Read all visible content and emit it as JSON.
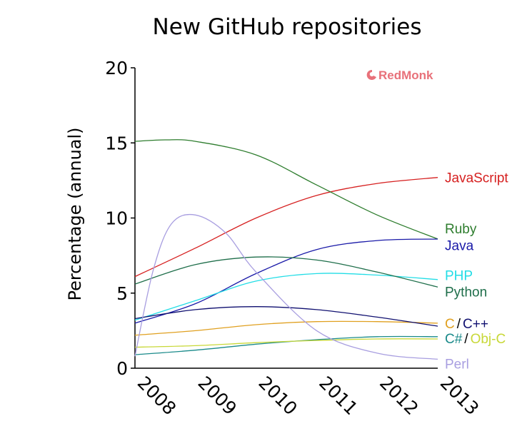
{
  "chart_data": {
    "type": "line",
    "title": "New GitHub repositories",
    "xlabel": "",
    "ylabel": "Percentage (annual)",
    "x": [
      "2008",
      "2009",
      "2010",
      "2011",
      "2012",
      "2013"
    ],
    "xlim": [
      2008,
      2013
    ],
    "ylim": [
      0,
      20
    ],
    "yticks": [
      "0",
      "5",
      "10",
      "15",
      "20"
    ],
    "grid": false,
    "legend": "inline-right",
    "logo": "RedMonk",
    "logo_color": "#e8717a",
    "series": [
      {
        "name": "JavaScript",
        "color": "#d62020",
        "points": [
          [
            2008,
            6.1
          ],
          [
            2009,
            8.0
          ],
          [
            2010,
            10.0
          ],
          [
            2011,
            11.5
          ],
          [
            2012,
            12.3
          ],
          [
            2013,
            12.7
          ]
        ]
      },
      {
        "name": "Ruby",
        "color": "#2e7d2e",
        "points": [
          [
            2008,
            15.1
          ],
          [
            2008.5,
            15.2
          ],
          [
            2009,
            15.1
          ],
          [
            2010,
            14.2
          ],
          [
            2011,
            12.2
          ],
          [
            2012,
            10.2
          ],
          [
            2013,
            8.6
          ]
        ]
      },
      {
        "name": "Java",
        "color": "#1a1aa8",
        "points": [
          [
            2008,
            3.0
          ],
          [
            2009,
            4.3
          ],
          [
            2010,
            6.3
          ],
          [
            2011,
            7.9
          ],
          [
            2012,
            8.5
          ],
          [
            2013,
            8.6
          ]
        ]
      },
      {
        "name": "PHP",
        "color": "#22dde6",
        "points": [
          [
            2008,
            3.2
          ],
          [
            2009,
            4.5
          ],
          [
            2010,
            5.8
          ],
          [
            2011,
            6.3
          ],
          [
            2012,
            6.2
          ],
          [
            2013,
            5.9
          ]
        ]
      },
      {
        "name": "Python",
        "color": "#1e6e4a",
        "points": [
          [
            2008,
            5.6
          ],
          [
            2009,
            6.9
          ],
          [
            2010,
            7.4
          ],
          [
            2011,
            7.2
          ],
          [
            2012,
            6.4
          ],
          [
            2013,
            5.4
          ]
        ]
      },
      {
        "name": "C",
        "color": "#e0a020",
        "points": [
          [
            2008,
            2.2
          ],
          [
            2009,
            2.5
          ],
          [
            2010,
            2.9
          ],
          [
            2011,
            3.1
          ],
          [
            2012,
            3.1
          ],
          [
            2013,
            3.0
          ]
        ]
      },
      {
        "name": "C++",
        "color": "#101070",
        "points": [
          [
            2008,
            3.3
          ],
          [
            2009,
            3.9
          ],
          [
            2010,
            4.1
          ],
          [
            2011,
            3.9
          ],
          [
            2012,
            3.4
          ],
          [
            2013,
            2.8
          ]
        ]
      },
      {
        "name": "C#",
        "color": "#1a8a8a",
        "points": [
          [
            2008,
            0.9
          ],
          [
            2009,
            1.2
          ],
          [
            2010,
            1.6
          ],
          [
            2011,
            1.9
          ],
          [
            2012,
            2.1
          ],
          [
            2013,
            2.1
          ]
        ]
      },
      {
        "name": "Obj-C",
        "color": "#c8d838",
        "points": [
          [
            2008,
            1.4
          ],
          [
            2009,
            1.5
          ],
          [
            2010,
            1.7
          ],
          [
            2011,
            1.85
          ],
          [
            2012,
            1.95
          ],
          [
            2013,
            1.95
          ]
        ]
      },
      {
        "name": "Perl",
        "color": "#a89ee0",
        "points": [
          [
            2008,
            0.8
          ],
          [
            2008.3,
            6.5
          ],
          [
            2008.6,
            9.6
          ],
          [
            2009,
            10.2
          ],
          [
            2009.5,
            9.0
          ],
          [
            2010,
            6.4
          ],
          [
            2011,
            2.5
          ],
          [
            2012,
            1.0
          ],
          [
            2013,
            0.6
          ]
        ]
      }
    ],
    "labels": [
      {
        "text": "JavaScript",
        "series": "JavaScript",
        "y": 12.7
      },
      {
        "text": "Ruby",
        "series": "Ruby",
        "y": 9.3
      },
      {
        "text": "Java",
        "series": "Java",
        "y": 8.2
      },
      {
        "text": "PHP",
        "series": "PHP",
        "y": 6.2
      },
      {
        "text": "Python",
        "series": "Python",
        "y": 5.1
      },
      {
        "text": "C",
        "series": "C",
        "y": 3.0
      },
      {
        "text": "/",
        "series": "C++",
        "y": 3.0,
        "color": "#000000"
      },
      {
        "text": "C++",
        "series": "C++",
        "y": 3.0
      },
      {
        "text": "C#",
        "series": "C#",
        "y": 2.0
      },
      {
        "text": "/",
        "series": "C#",
        "y": 2.0,
        "color": "#000000"
      },
      {
        "text": "Obj-C",
        "series": "Obj-C",
        "y": 2.0
      },
      {
        "text": "Perl",
        "series": "Perl",
        "y": 0.3
      }
    ]
  }
}
